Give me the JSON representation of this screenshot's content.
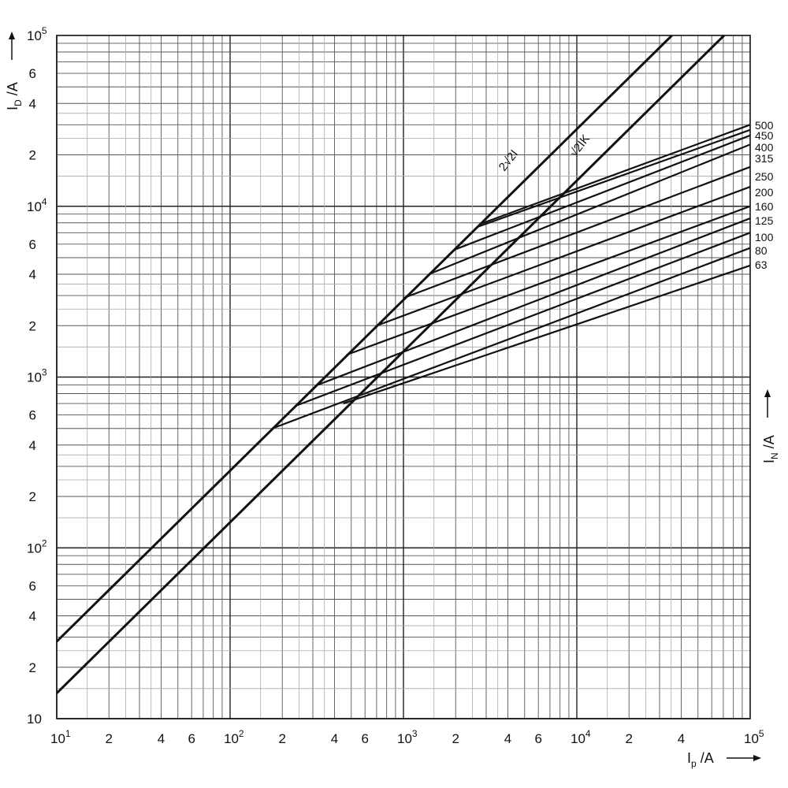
{
  "chart_data": {
    "type": "line",
    "x_scale": "log",
    "y_scale": "log",
    "xlim": [
      10,
      100000
    ],
    "ylim": [
      10,
      100000
    ],
    "grid": true,
    "x_axis": {
      "label_main": "I",
      "label_sub": "p",
      "label_unit": " /A",
      "ticks": [
        {
          "value": 10,
          "base": "10",
          "exp": "1"
        },
        {
          "value": 20,
          "text": "2"
        },
        {
          "value": 40,
          "text": "4"
        },
        {
          "value": 60,
          "text": "6"
        },
        {
          "value": 100,
          "base": "10",
          "exp": "2"
        },
        {
          "value": 200,
          "text": "2"
        },
        {
          "value": 400,
          "text": "4"
        },
        {
          "value": 600,
          "text": "6"
        },
        {
          "value": 1000,
          "base": "10",
          "exp": "3"
        },
        {
          "value": 2000,
          "text": "2"
        },
        {
          "value": 4000,
          "text": "4"
        },
        {
          "value": 6000,
          "text": "6"
        },
        {
          "value": 10000,
          "base": "10",
          "exp": "4"
        },
        {
          "value": 20000,
          "text": "2"
        },
        {
          "value": 40000,
          "text": "4"
        },
        {
          "value": 100000,
          "base": "10",
          "exp": "5"
        }
      ]
    },
    "y_axis": {
      "label_main": "I",
      "label_sub": "D",
      "label_unit": " /A",
      "ticks": [
        {
          "value": 10,
          "base": "10",
          "exp": ""
        },
        {
          "value": 20,
          "text": "2"
        },
        {
          "value": 40,
          "text": "4"
        },
        {
          "value": 60,
          "text": "6"
        },
        {
          "value": 100,
          "base": "10",
          "exp": "2"
        },
        {
          "value": 200,
          "text": "2"
        },
        {
          "value": 400,
          "text": "4"
        },
        {
          "value": 600,
          "text": "6"
        },
        {
          "value": 1000,
          "base": "10",
          "exp": "3"
        },
        {
          "value": 2000,
          "text": "2"
        },
        {
          "value": 4000,
          "text": "4"
        },
        {
          "value": 6000,
          "text": "6"
        },
        {
          "value": 10000,
          "base": "10",
          "exp": "4"
        },
        {
          "value": 20000,
          "text": "2"
        },
        {
          "value": 40000,
          "text": "4"
        },
        {
          "value": 60000,
          "text": "6"
        },
        {
          "value": 100000,
          "base": "10",
          "exp": "5"
        }
      ]
    },
    "side_label": {
      "main": "I",
      "sub": "N",
      "unit": " /A"
    },
    "reference_lines": [
      {
        "name": "2√2I",
        "points": [
          [
            10,
            28.3
          ],
          [
            35355,
            100000
          ]
        ]
      },
      {
        "name": "√2IK",
        "points": [
          [
            10,
            14.1
          ],
          [
            70711,
            100000
          ]
        ]
      }
    ],
    "series": [
      {
        "name": "500",
        "points": [
          [
            2800,
            7900
          ],
          [
            100000,
            30000
          ]
        ]
      },
      {
        "name": "450",
        "points": [
          [
            2700,
            7600
          ],
          [
            100000,
            28000
          ]
        ]
      },
      {
        "name": "400",
        "points": [
          [
            2000,
            5600
          ],
          [
            100000,
            26000
          ]
        ]
      },
      {
        "name": "315",
        "points": [
          [
            1400,
            4000
          ],
          [
            100000,
            23000
          ]
        ]
      },
      {
        "name": "250",
        "points": [
          [
            1000,
            2900
          ],
          [
            100000,
            17000
          ]
        ]
      },
      {
        "name": "200",
        "points": [
          [
            700,
            2000
          ],
          [
            100000,
            13000
          ]
        ]
      },
      {
        "name": "160",
        "points": [
          [
            470,
            1350
          ],
          [
            100000,
            10000
          ]
        ]
      },
      {
        "name": "125",
        "points": [
          [
            320,
            900
          ],
          [
            100000,
            8500
          ]
        ]
      },
      {
        "name": "100",
        "points": [
          [
            240,
            680
          ],
          [
            100000,
            7000
          ]
        ]
      },
      {
        "name": "80",
        "points": [
          [
            175,
            500
          ],
          [
            100000,
            5700
          ]
        ]
      },
      {
        "name": "63",
        "points": [
          [
            450,
            700
          ],
          [
            100000,
            4500
          ]
        ]
      }
    ]
  }
}
